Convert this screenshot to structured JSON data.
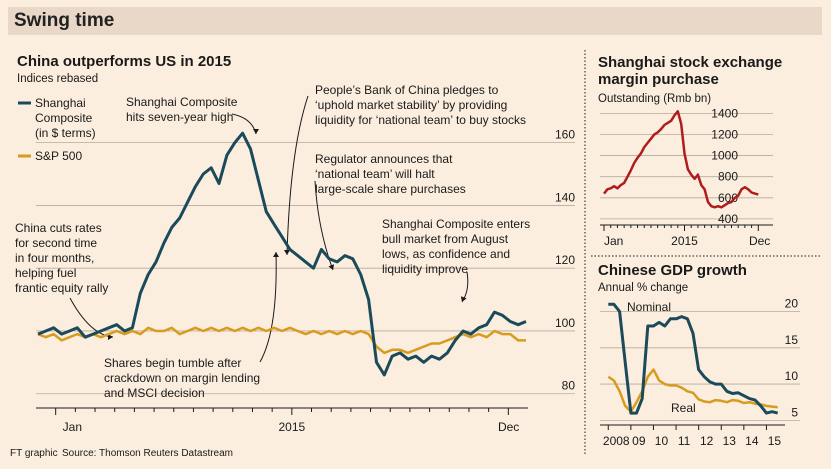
{
  "banner_title": "Swing time",
  "footer": {
    "credit": "FT graphic",
    "source": "Source: Thomson Reuters Datastream"
  },
  "colors": {
    "shanghai": "#1b4a5a",
    "sp500": "#d79b1e",
    "margin": "#b01c1c",
    "nominal": "#1b4a5a",
    "real": "#d79b1e",
    "grid": "#b8aa9c",
    "background": "#fbeede",
    "banner": "#e9d8c8"
  },
  "chart_data": [
    {
      "type": "line",
      "title": "China outperforms US in 2015",
      "subtitle": "Indices rebased",
      "x_tick_labels": [
        "Jan",
        "2015",
        "Dec"
      ],
      "x_tick_positions": [
        1,
        13,
        24
      ],
      "y_ticks": [
        80,
        100,
        120,
        140,
        160
      ],
      "ylim": [
        78,
        172
      ],
      "xlim": [
        0,
        25
      ],
      "grid": "horizontal",
      "legend": [
        {
          "series": "Shanghai",
          "lines": [
            "Shanghai",
            "Composite",
            "(in $ terms)"
          ]
        },
        {
          "series": "S&P",
          "lines": [
            "S&P 500"
          ]
        }
      ],
      "series": [
        {
          "name": "Shanghai Composite (in $ terms)",
          "x": [
            0.1,
            0.5,
            0.9,
            1.3,
            1.7,
            2.1,
            2.5,
            2.9,
            3.3,
            3.7,
            4.1,
            4.5,
            4.9,
            5.3,
            5.7,
            6.1,
            6.5,
            6.9,
            7.3,
            7.7,
            8.1,
            8.5,
            8.9,
            9.3,
            9.7,
            10.1,
            10.5,
            10.9,
            11.3,
            11.7,
            12.1,
            12.5,
            12.9,
            13.3,
            13.7,
            14.1,
            14.5,
            14.9,
            15.3,
            15.7,
            16.1,
            16.5,
            16.9,
            17.3,
            17.7,
            18.1,
            18.5,
            18.9,
            19.3,
            19.7,
            20.1,
            20.5,
            20.9,
            21.3,
            21.7,
            22.1,
            22.5,
            22.9,
            23.3,
            23.7,
            24.1,
            24.5,
            24.9
          ],
          "values": [
            99,
            100,
            101,
            99,
            100,
            101,
            98,
            99,
            100,
            101,
            102,
            100,
            101,
            112,
            118,
            122,
            128,
            133,
            136,
            141,
            146,
            150,
            152,
            147,
            156,
            160,
            163,
            158,
            148,
            138,
            134,
            130,
            126,
            124,
            122,
            120,
            126,
            123,
            122,
            124,
            123,
            118,
            110,
            90,
            86,
            92,
            93,
            91,
            92,
            90,
            92,
            91,
            93,
            97,
            100,
            99,
            101,
            102,
            106,
            105,
            103,
            102,
            103
          ]
        },
        {
          "name": "S&P 500",
          "x": [
            0.1,
            0.5,
            0.9,
            1.3,
            1.7,
            2.1,
            2.5,
            2.9,
            3.3,
            3.7,
            4.1,
            4.5,
            4.9,
            5.3,
            5.7,
            6.1,
            6.5,
            6.9,
            7.3,
            7.7,
            8.1,
            8.5,
            8.9,
            9.3,
            9.7,
            10.1,
            10.5,
            10.9,
            11.3,
            11.7,
            12.1,
            12.5,
            12.9,
            13.3,
            13.7,
            14.1,
            14.5,
            14.9,
            15.3,
            15.7,
            16.1,
            16.5,
            16.9,
            17.3,
            17.7,
            18.1,
            18.5,
            18.9,
            19.3,
            19.7,
            20.1,
            20.5,
            20.9,
            21.3,
            21.7,
            22.1,
            22.5,
            22.9,
            23.3,
            23.7,
            24.1,
            24.5,
            24.9
          ],
          "values": [
            99,
            98,
            99,
            97,
            98,
            99,
            98,
            99,
            98,
            99,
            100,
            99,
            100,
            99,
            101,
            100,
            100,
            101,
            99,
            100,
            101,
            100,
            101,
            100,
            101,
            100,
            101,
            100,
            101,
            100,
            101,
            100,
            101,
            100,
            99,
            100,
            99,
            100,
            99,
            100,
            99,
            100,
            99,
            95,
            93,
            94,
            94,
            93,
            94,
            95,
            96,
            96,
            97,
            98,
            99,
            98,
            99,
            98,
            100,
            99,
            99,
            97,
            97
          ]
        }
      ],
      "annotations": [
        {
          "lines": [
            "China cuts rates",
            "for second time",
            "in four months,",
            "helping fuel",
            "frantic equity rally"
          ]
        },
        {
          "lines": [
            "Shanghai Composite",
            "hits seven-year high"
          ]
        },
        {
          "lines": [
            "People’s Bank of China pledges to",
            "‘uphold market stability’ by providing",
            "liquidity for ‘national team’ to buy stocks"
          ]
        },
        {
          "lines": [
            "Regulator announces that",
            "‘national team’ will halt",
            "large-scale share purchases"
          ]
        },
        {
          "lines": [
            "Shanghai Composite enters",
            "bull market from August",
            "lows, as confidence and",
            "liquidity improve"
          ]
        },
        {
          "lines": [
            "Shares begin tumble after",
            "crackdown on margin lending",
            "and MSCI decision"
          ]
        }
      ]
    },
    {
      "type": "line",
      "title_lines": [
        "Shanghai stock exchange",
        "margin purchase"
      ],
      "subtitle": "Outstanding (Rmb bn)",
      "x_tick_labels": [
        "Jan",
        "2015",
        "Dec"
      ],
      "x_tick_positions": [
        0,
        12,
        23
      ],
      "y_ticks": [
        400,
        600,
        800,
        1000,
        1200,
        1400
      ],
      "ylim": [
        380,
        1470
      ],
      "xlim": [
        -0.3,
        24
      ],
      "grid": "horizontal",
      "series": [
        {
          "name": "Margin purchase outstanding",
          "x": [
            0,
            0.5,
            1,
            1.5,
            2,
            2.5,
            3,
            3.5,
            4,
            4.5,
            5,
            5.5,
            6,
            6.5,
            7,
            7.5,
            8,
            8.5,
            9,
            9.5,
            10,
            10.5,
            11,
            11.5,
            12,
            12.5,
            13,
            13.5,
            14,
            14.5,
            15,
            15.5,
            16,
            16.5,
            17,
            17.5,
            18,
            18.5,
            19,
            19.5,
            20,
            20.5,
            21,
            21.5,
            22,
            22.5,
            23
          ],
          "values": [
            640,
            680,
            690,
            710,
            690,
            720,
            740,
            800,
            860,
            930,
            980,
            1020,
            1080,
            1120,
            1160,
            1200,
            1220,
            1250,
            1290,
            1310,
            1330,
            1380,
            1420,
            1300,
            1020,
            870,
            820,
            780,
            820,
            720,
            680,
            560,
            520,
            510,
            520,
            510,
            530,
            550,
            560,
            600,
            620,
            680,
            700,
            680,
            650,
            640,
            630
          ]
        }
      ]
    },
    {
      "type": "line",
      "title": "Chinese GDP growth",
      "subtitle": "Annual % change",
      "x_tick_labels": [
        "2008",
        "09",
        "10",
        "11",
        "12",
        "13",
        "14",
        "15"
      ],
      "x_tick_positions": [
        2008,
        2009,
        2010,
        2011,
        2012,
        2013,
        2014,
        2015
      ],
      "y_ticks": [
        5,
        10,
        15,
        20
      ],
      "ylim": [
        4.5,
        22
      ],
      "xlim": [
        2007.9,
        2015.6
      ],
      "grid": "horizontal",
      "series": [
        {
          "name": "Nominal",
          "x": [
            2008,
            2008.25,
            2008.5,
            2008.75,
            2009,
            2009.25,
            2009.5,
            2009.75,
            2010,
            2010.25,
            2010.5,
            2010.75,
            2011,
            2011.25,
            2011.5,
            2011.75,
            2012,
            2012.25,
            2012.5,
            2012.75,
            2013,
            2013.25,
            2013.5,
            2013.75,
            2014,
            2014.25,
            2014.5,
            2014.75,
            2015,
            2015.25,
            2015.5
          ],
          "values": [
            21,
            21,
            20,
            13,
            6,
            6,
            8,
            18,
            18,
            18.5,
            18,
            19,
            19,
            19.3,
            19,
            17,
            12,
            11,
            10.3,
            10,
            10,
            9,
            8.7,
            8.8,
            8.4,
            8,
            7.8,
            7,
            6,
            6.2,
            6
          ]
        },
        {
          "name": "Real",
          "x": [
            2008,
            2008.25,
            2008.5,
            2008.75,
            2009,
            2009.25,
            2009.5,
            2009.75,
            2010,
            2010.25,
            2010.5,
            2010.75,
            2011,
            2011.25,
            2011.5,
            2011.75,
            2012,
            2012.25,
            2012.5,
            2012.75,
            2013,
            2013.25,
            2013.5,
            2013.75,
            2014,
            2014.25,
            2014.5,
            2014.75,
            2015,
            2015.25,
            2015.5
          ],
          "values": [
            11,
            10.5,
            9,
            7,
            6.2,
            7.5,
            9,
            11,
            12,
            10.5,
            10,
            9.8,
            9.8,
            9.5,
            9,
            8.8,
            7.9,
            7.6,
            7.5,
            7.8,
            7.7,
            7.5,
            7.8,
            7.7,
            7.4,
            7.5,
            7.3,
            7.2,
            7,
            6.9,
            6.8
          ]
        }
      ],
      "series_labels": {
        "nominal": "Nominal",
        "real": "Real"
      }
    }
  ]
}
